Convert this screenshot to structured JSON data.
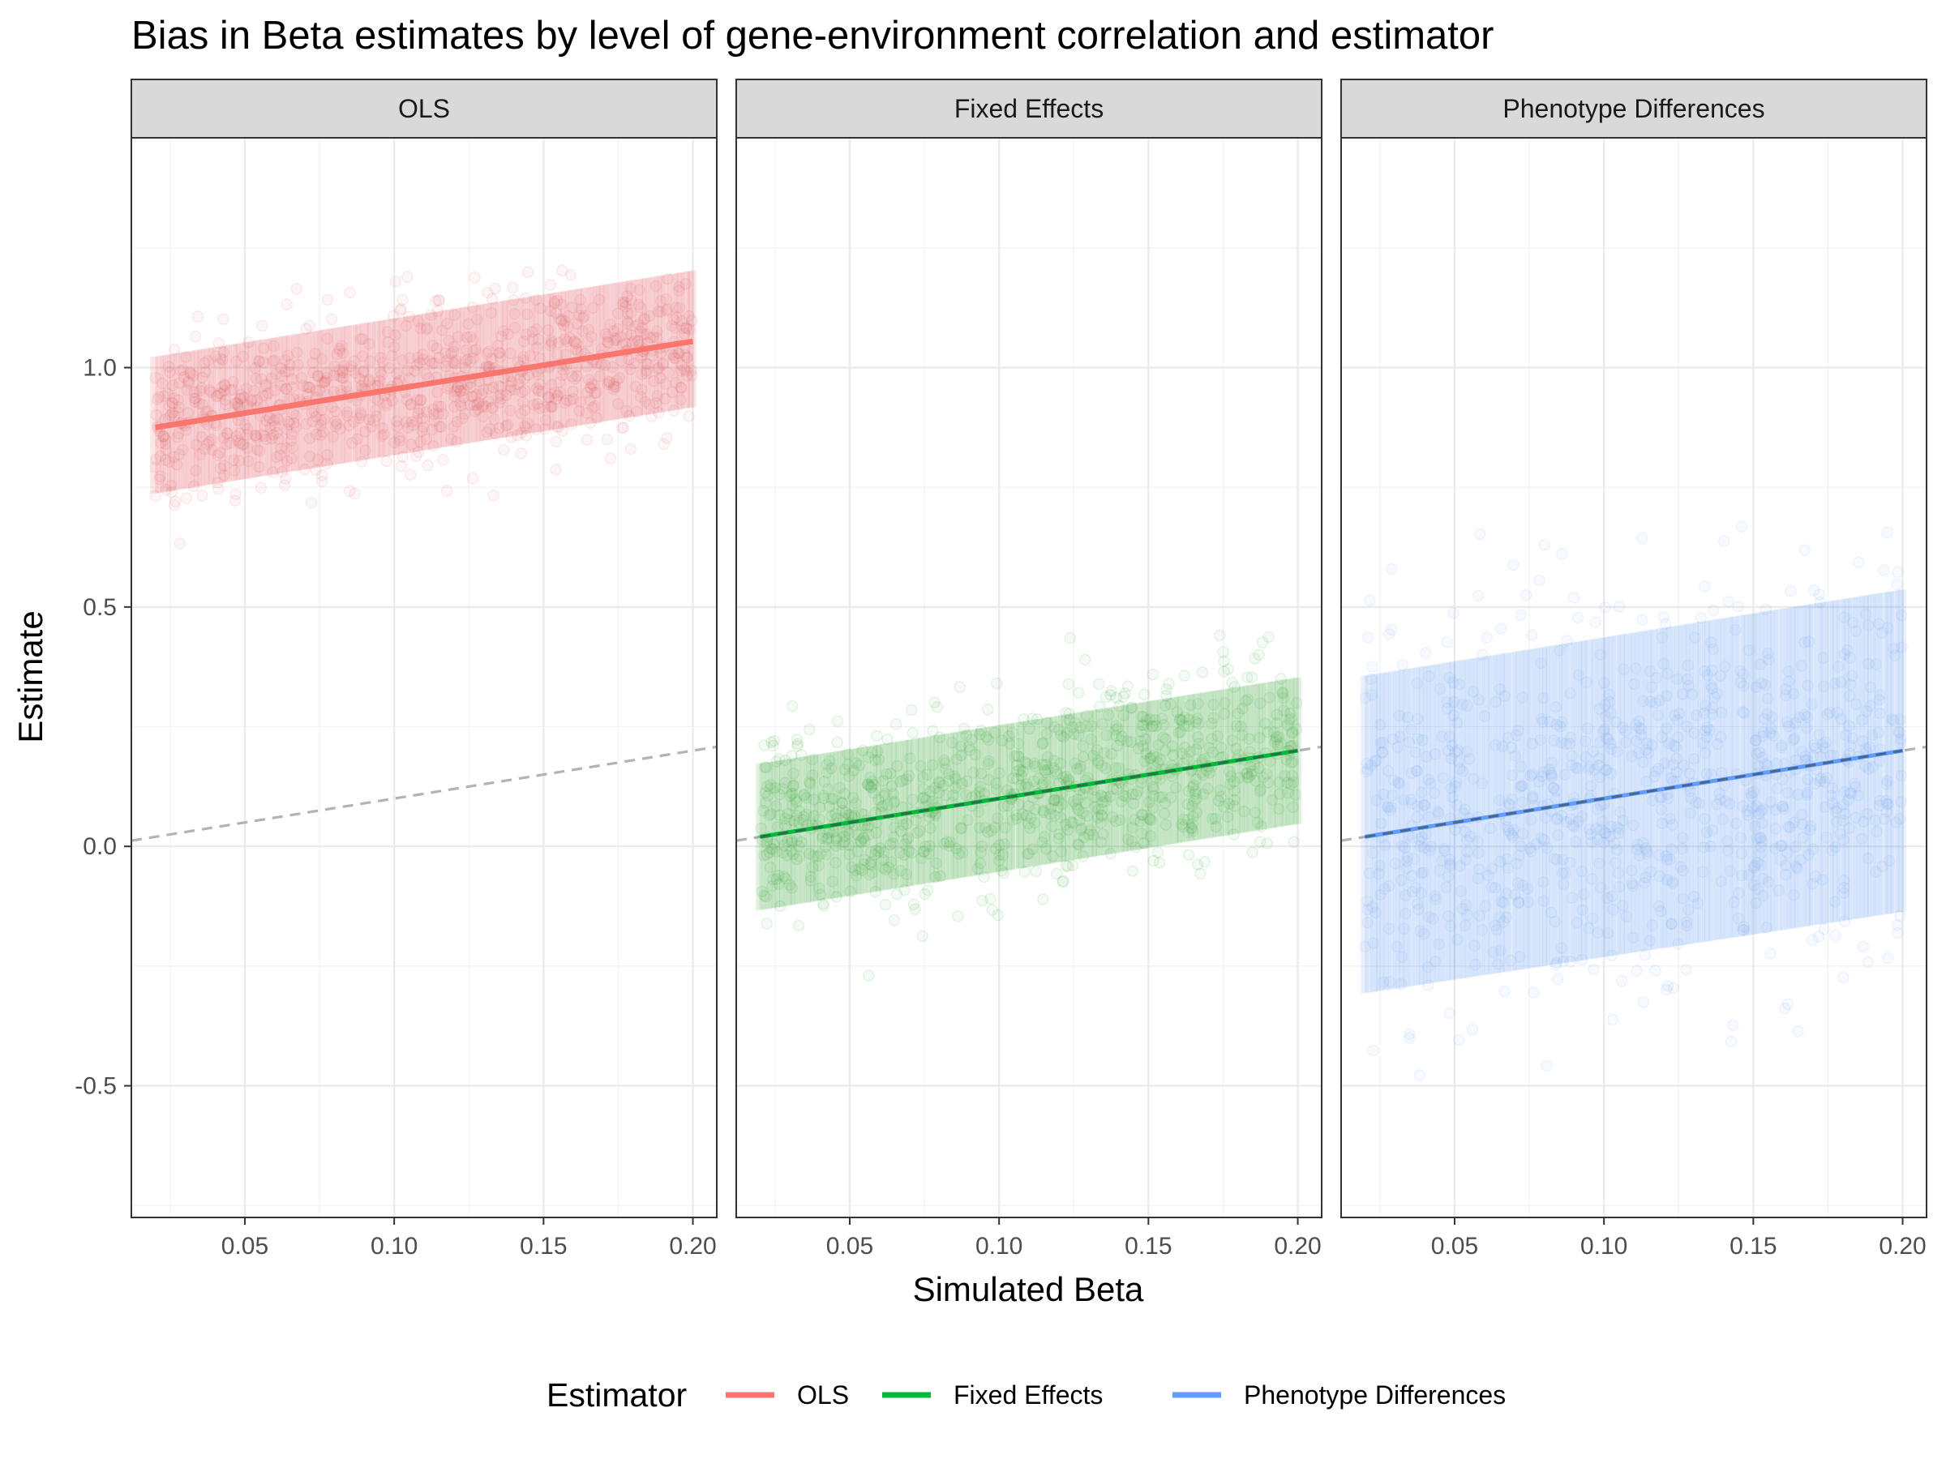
{
  "chart_data": {
    "type": "scatter",
    "title": "Bias in Beta estimates by level of gene-environment correlation and estimator",
    "xlabel": "Simulated Beta",
    "ylabel": "Estimate",
    "xlim": [
      0.012,
      0.208
    ],
    "ylim": [
      -0.775,
      1.48
    ],
    "x_ticks": [
      0.05,
      0.1,
      0.15,
      0.2
    ],
    "x_tick_labels": [
      "0.05",
      "0.10",
      "0.15",
      "0.20"
    ],
    "y_ticks": [
      -0.5,
      0.0,
      0.5,
      1.0
    ],
    "y_tick_labels": [
      "-0.5",
      "0.0",
      "0.5",
      "1.0"
    ],
    "grid": true,
    "legend": {
      "title": "Estimator",
      "position": "bottom",
      "entries": [
        {
          "label": "OLS",
          "color": "#F8766D"
        },
        {
          "label": "Fixed Effects",
          "color": "#00BA38"
        },
        {
          "label": "Phenotype Differences",
          "color": "#619CFF"
        }
      ]
    },
    "reference_line": {
      "style": "dashed",
      "color": "#b3b3b3",
      "intercept": 0,
      "slope": 1
    },
    "panels": [
      {
        "facet": "OLS",
        "color": "#F8766D",
        "point_color": "#E04C50",
        "fit": {
          "x": [
            0.02,
            0.2
          ],
          "y": [
            0.875,
            1.055
          ]
        },
        "spread": {
          "x": [
            0.02,
            0.2
          ],
          "y_low": [
            0.62,
            0.8
          ],
          "y_high": [
            1.13,
            1.31
          ],
          "dense_low": [
            0.74,
            0.92
          ],
          "dense_high": [
            1.02,
            1.2
          ]
        }
      },
      {
        "facet": "Fixed Effects",
        "color": "#00BA38",
        "point_color": "#1FA020",
        "fit": {
          "x": [
            0.02,
            0.2
          ],
          "y": [
            0.02,
            0.2
          ]
        },
        "spread": {
          "x": [
            0.02,
            0.2
          ],
          "y_low": [
            -0.25,
            -0.07
          ],
          "y_high": [
            0.3,
            0.48
          ],
          "dense_low": [
            -0.13,
            0.05
          ],
          "dense_high": [
            0.17,
            0.35
          ]
        }
      },
      {
        "facet": "Phenotype Differences",
        "color": "#619CFF",
        "point_color": "#6A9EF5",
        "fit": {
          "x": [
            0.02,
            0.2
          ],
          "y": [
            0.02,
            0.2
          ]
        },
        "spread": {
          "x": [
            0.02,
            0.2
          ],
          "y_low": [
            -0.55,
            -0.38
          ],
          "y_high": [
            0.62,
            0.78
          ],
          "dense_low": [
            -0.3,
            -0.13
          ],
          "dense_high": [
            0.35,
            0.53
          ]
        }
      }
    ]
  }
}
